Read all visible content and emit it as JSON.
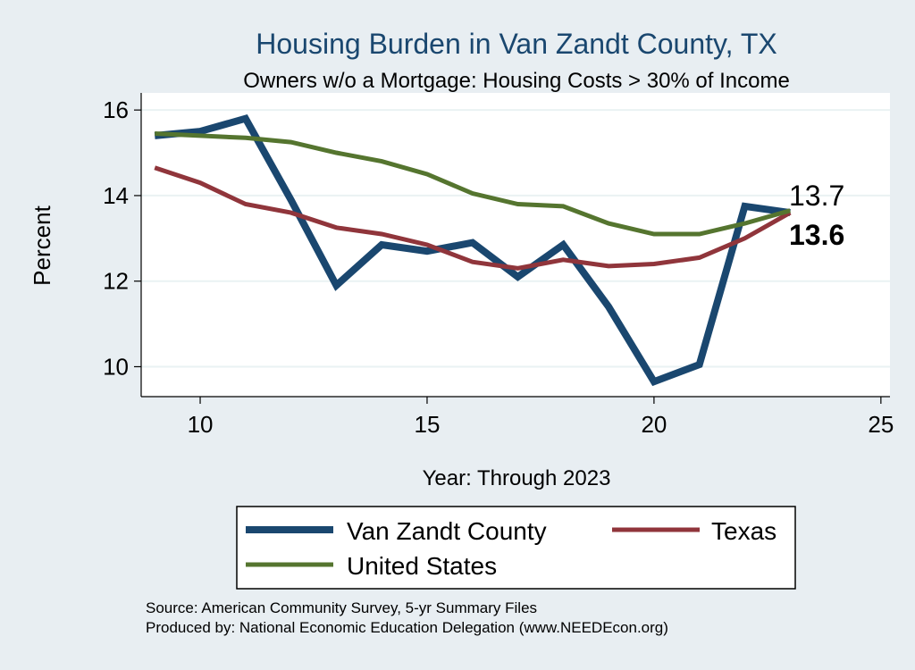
{
  "chart_data": {
    "type": "line",
    "title": "Housing Burden in Van Zandt County, TX",
    "subtitle": "Owners w/o a Mortgage: Housing Costs > 30% of Income",
    "xlabel": "Year: Through 2023",
    "ylabel": "Percent",
    "xlim": [
      8.7,
      25.2
    ],
    "ylim": [
      9.3,
      16.4
    ],
    "xticks": [
      10,
      15,
      20,
      25
    ],
    "yticks": [
      10,
      12,
      14,
      16
    ],
    "grid": "horizontal",
    "legend_position": "bottom",
    "series": [
      {
        "name": "Van Zandt County",
        "color": "#1a476f",
        "width": 8,
        "x": [
          9,
          10,
          11,
          12,
          13,
          14,
          15,
          16,
          17,
          18,
          19,
          20,
          21,
          22,
          23
        ],
        "values": [
          15.4,
          15.5,
          15.8,
          13.9,
          11.9,
          12.85,
          12.7,
          12.9,
          12.1,
          12.85,
          11.4,
          9.65,
          10.05,
          13.75,
          13.6
        ]
      },
      {
        "name": "Texas",
        "color": "#90353b",
        "width": 5,
        "x": [
          9,
          10,
          11,
          12,
          13,
          14,
          15,
          16,
          17,
          18,
          19,
          20,
          21,
          22,
          23
        ],
        "values": [
          14.65,
          14.3,
          13.8,
          13.6,
          13.25,
          13.1,
          12.85,
          12.45,
          12.3,
          12.5,
          12.35,
          12.4,
          12.55,
          13.0,
          13.6
        ]
      },
      {
        "name": "United States",
        "color": "#55752f",
        "width": 5,
        "x": [
          9,
          10,
          11,
          12,
          13,
          14,
          15,
          16,
          17,
          18,
          19,
          20,
          21,
          22,
          23
        ],
        "values": [
          15.45,
          15.4,
          15.35,
          15.25,
          15.0,
          14.8,
          14.5,
          14.05,
          13.8,
          13.75,
          13.35,
          13.1,
          13.1,
          13.35,
          13.65
        ]
      }
    ],
    "end_labels": [
      "13.7",
      "13.6"
    ],
    "legend": {
      "items": [
        "Van Zandt County",
        "Texas",
        "United States"
      ]
    },
    "notes": [
      "Source: American Community Survey, 5-yr Summary Files",
      "Produced by: National Economic Education Delegation (www.NEEDEcon.org)"
    ]
  }
}
